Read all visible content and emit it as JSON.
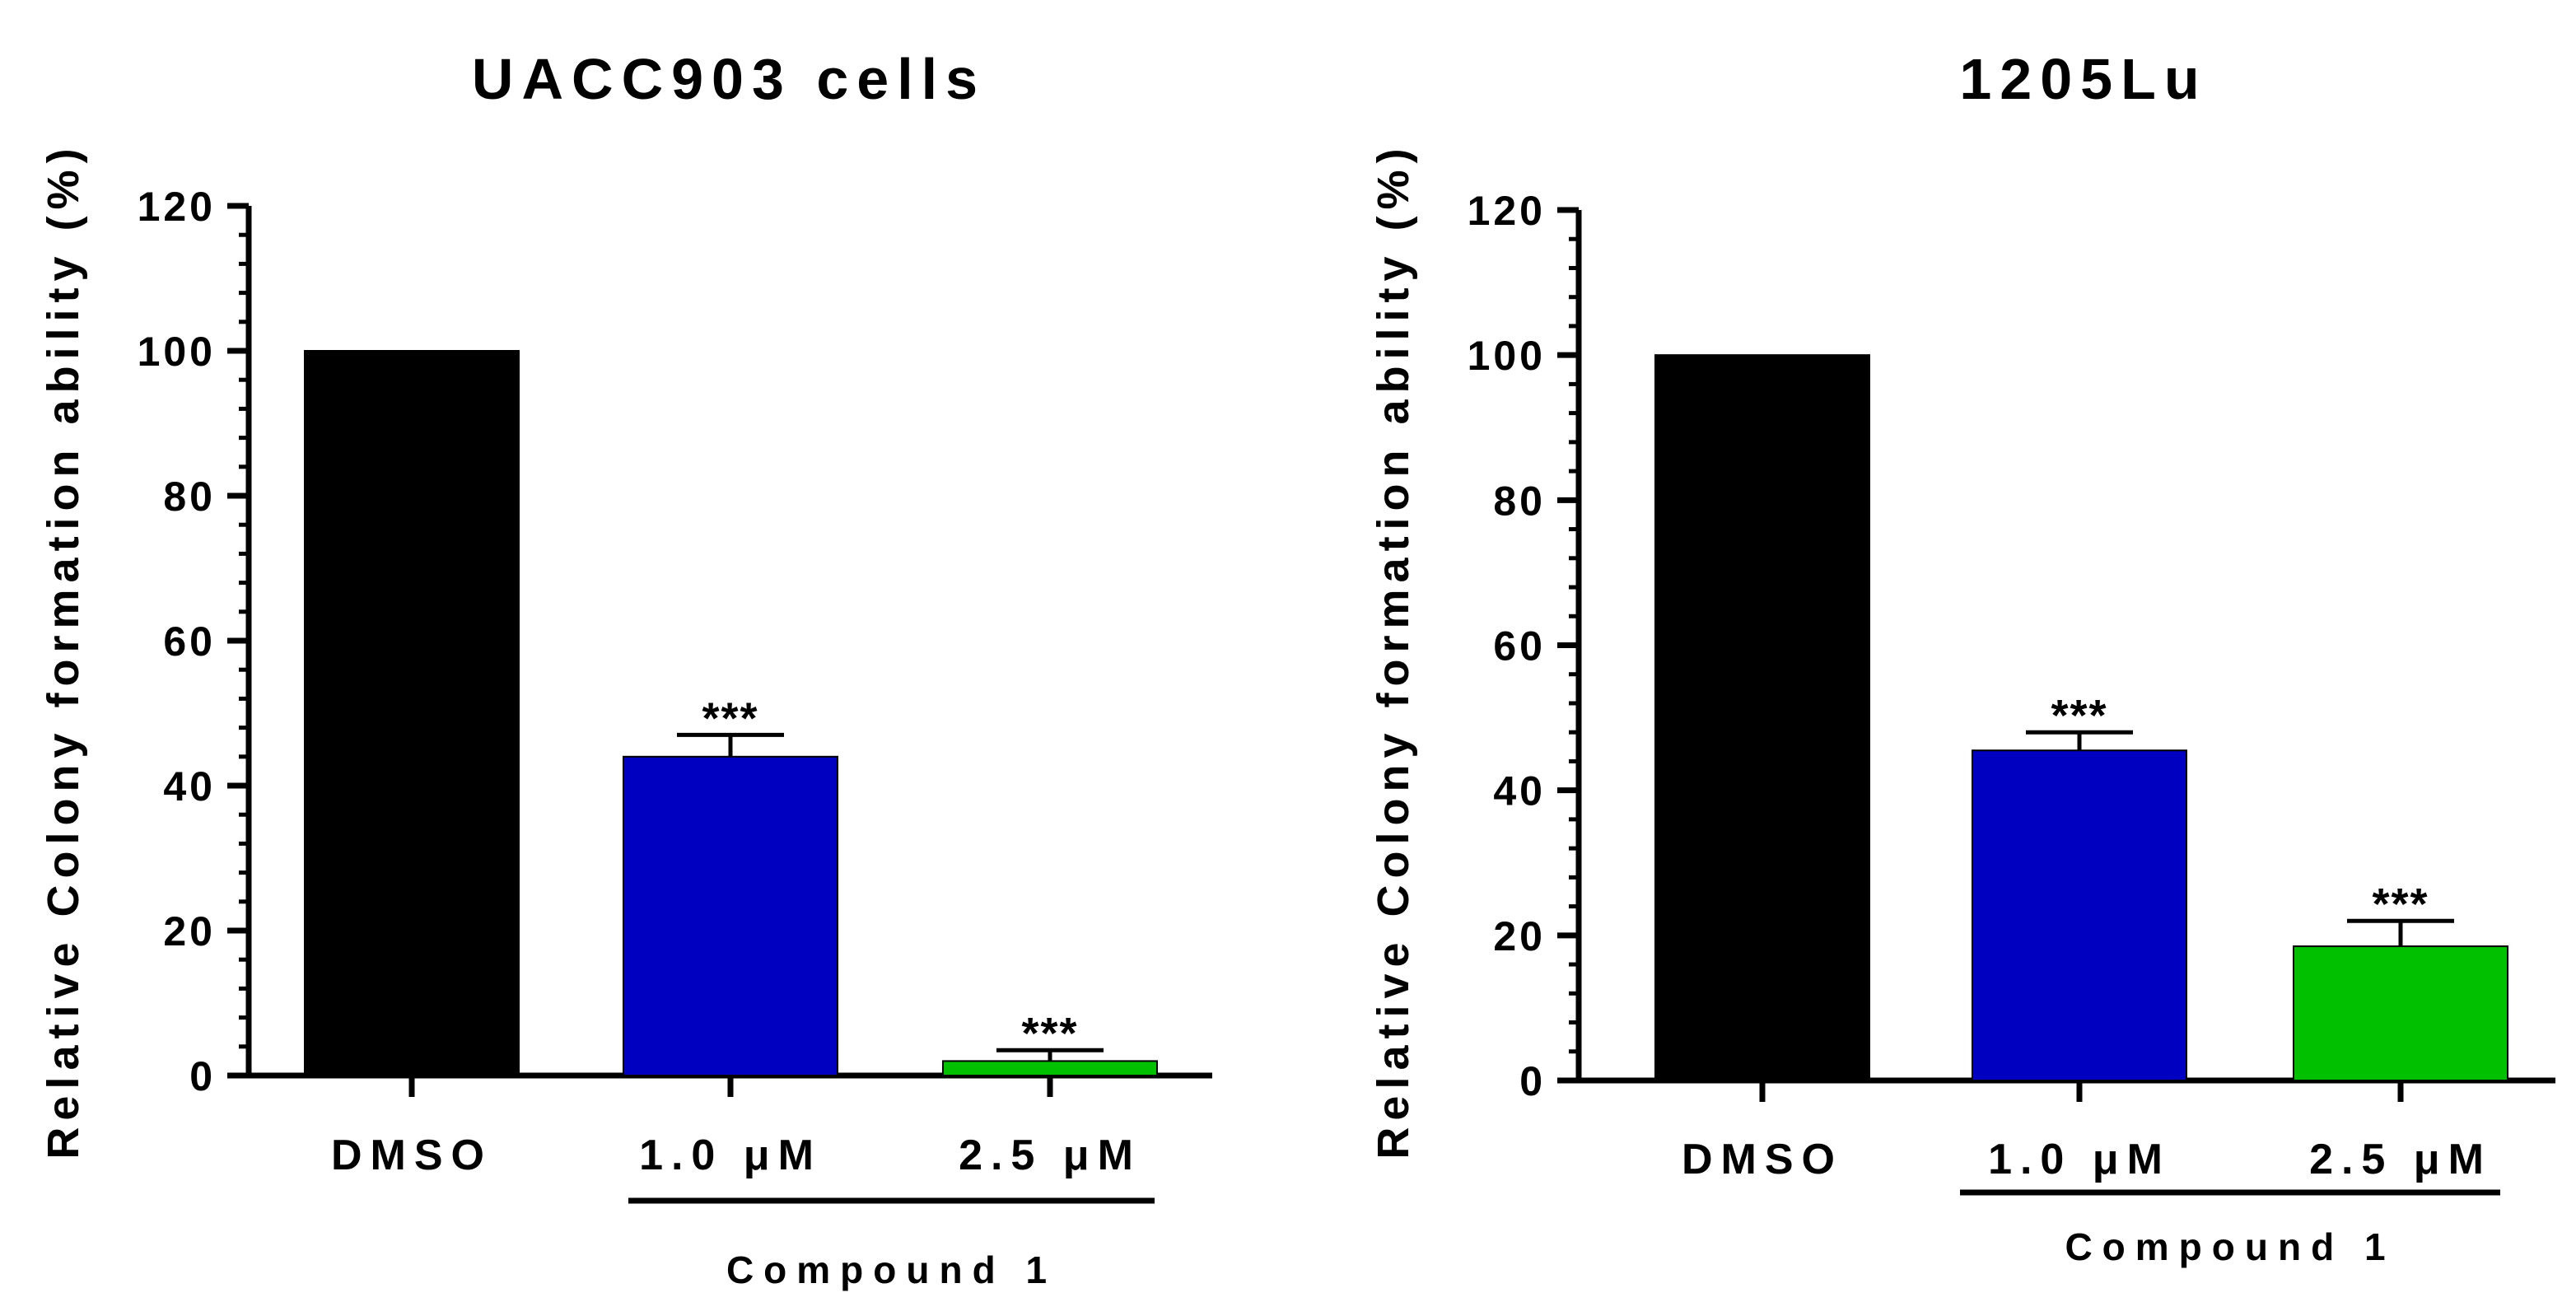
{
  "chart_data": [
    {
      "type": "bar",
      "title": "UACC903 cells",
      "ylabel": "Relative Colony formation ability (%)",
      "xlabel": "",
      "ylim": [
        0,
        120
      ],
      "yticks": [
        "0",
        "20",
        "40",
        "60",
        "80",
        "100",
        "120"
      ],
      "categories": [
        "DMSO",
        "1.0 μM",
        "2.5 μM"
      ],
      "values": [
        100,
        44,
        2
      ],
      "errors": [
        0,
        3,
        1.5
      ],
      "annotations": [
        "",
        "***",
        "***"
      ],
      "colors": [
        "#000000",
        "#0000c0",
        "#00c000"
      ],
      "group_label": "Compound 1"
    },
    {
      "type": "bar",
      "title": "1205Lu",
      "ylabel": "Relative Colony formation ability (%)",
      "xlabel": "",
      "ylim": [
        0,
        120
      ],
      "yticks": [
        "0",
        "20",
        "40",
        "60",
        "80",
        "100",
        "120"
      ],
      "categories": [
        "DMSO",
        "1.0 μM",
        "2.5 μM"
      ],
      "values": [
        100,
        45.5,
        18.5
      ],
      "errors": [
        0,
        2.5,
        3.5
      ],
      "annotations": [
        "",
        "***",
        "***"
      ],
      "colors": [
        "#000000",
        "#0000c0",
        "#00c000"
      ],
      "group_label": "Compound 1"
    }
  ]
}
